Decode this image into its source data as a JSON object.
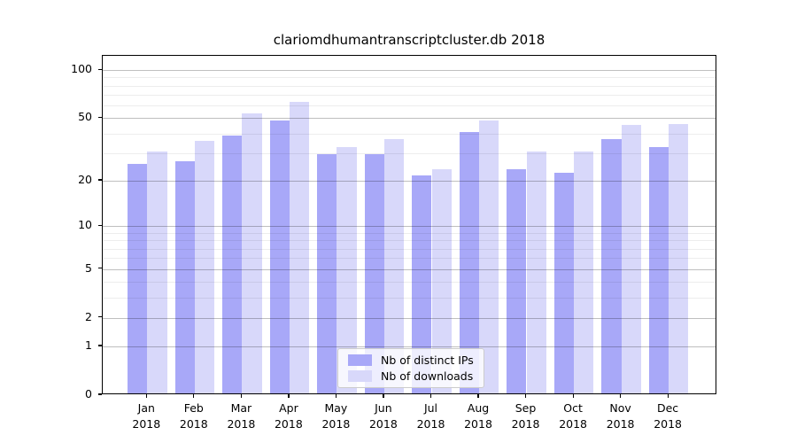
{
  "chart_data": {
    "type": "bar",
    "title": "clariomdhumantranscriptcluster.db 2018",
    "categories": [
      "Jan",
      "Feb",
      "Mar",
      "Apr",
      "May",
      "Jun",
      "Jul",
      "Aug",
      "Sep",
      "Oct",
      "Nov",
      "Dec"
    ],
    "year_label": "2018",
    "series": [
      {
        "name": "Nb of distinct IPs",
        "color": "#a8a8f8",
        "values": [
          25,
          26,
          38,
          47,
          29,
          29,
          21,
          40,
          23,
          22,
          36,
          32
        ]
      },
      {
        "name": "Nb of downloads",
        "color": "#d8d8fa",
        "values": [
          30,
          35,
          52,
          62,
          32,
          36,
          23,
          47,
          30,
          30,
          44,
          45
        ]
      }
    ],
    "xlabel": "",
    "ylabel": "",
    "yscale": "log1p",
    "yticks": [
      0,
      1,
      2,
      5,
      10,
      20,
      50,
      100
    ],
    "minor_gridlines": [
      3,
      4,
      6,
      7,
      8,
      9,
      30,
      40,
      60,
      70,
      80,
      90
    ],
    "ylim": [
      0,
      123
    ],
    "grid": true,
    "legend_position": "lower center"
  }
}
